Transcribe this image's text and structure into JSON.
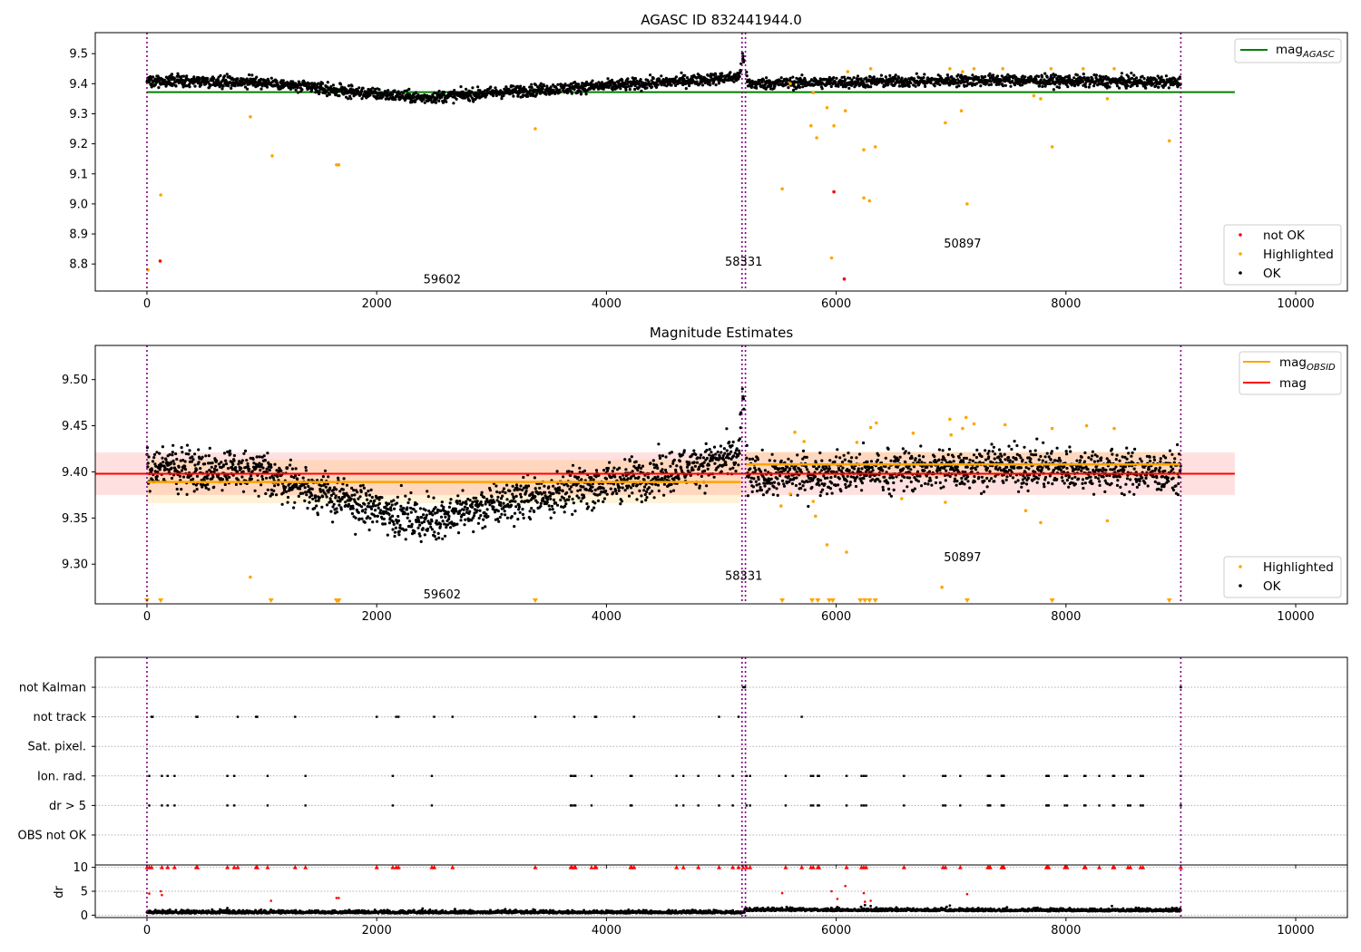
{
  "chart_data": [
    {
      "type": "scatter",
      "title": "AGASC ID 832441944.0",
      "xlim": [
        -450,
        10450
      ],
      "ylim": [
        8.71,
        9.57
      ],
      "xticks": [
        0,
        2000,
        4000,
        6000,
        8000,
        10000
      ],
      "yticks": [
        8.8,
        8.9,
        9.0,
        9.1,
        9.2,
        9.3,
        9.4,
        9.5
      ],
      "ytick_labels": [
        "8.8",
        "8.9",
        "9.0",
        "9.1",
        "9.2",
        "9.3",
        "9.4",
        "9.5"
      ],
      "obs_boundaries": [
        0,
        5180,
        5210,
        9000
      ],
      "obs_labels": [
        {
          "text": "59602",
          "x": 2570,
          "y": 8.75
        },
        {
          "text": "58331",
          "x": 5195,
          "y": 8.81
        },
        {
          "text": "50897",
          "x": 7100,
          "y": 8.87
        }
      ],
      "reference_line": {
        "name_main": "mag",
        "name_sub": "AGASC",
        "value": 9.372,
        "x_range": [
          0,
          9470
        ],
        "color": "#008000"
      },
      "ok_trend": [
        [
          0,
          9.412
        ],
        [
          1000,
          9.405
        ],
        [
          1800,
          9.372
        ],
        [
          2400,
          9.353
        ],
        [
          3200,
          9.375
        ],
        [
          4300,
          9.4
        ],
        [
          5150,
          9.422
        ],
        [
          5190,
          9.49
        ],
        [
          5230,
          9.4
        ],
        [
          6000,
          9.405
        ],
        [
          7400,
          9.412
        ],
        [
          9000,
          9.405
        ]
      ],
      "ok_spread": 0.03,
      "highlighted_points": [
        [
          10,
          8.78
        ],
        [
          120,
          9.03
        ],
        [
          900,
          9.29
        ],
        [
          1090,
          9.16
        ],
        [
          1650,
          9.13
        ],
        [
          1670,
          9.13
        ],
        [
          3380,
          9.25
        ],
        [
          5530,
          9.05
        ],
        [
          5600,
          9.4
        ],
        [
          5780,
          9.26
        ],
        [
          5830,
          9.22
        ],
        [
          5920,
          9.32
        ],
        [
          5960,
          8.82
        ],
        [
          5980,
          9.26
        ],
        [
          6080,
          9.31
        ],
        [
          6240,
          9.18
        ],
        [
          6240,
          9.02
        ],
        [
          6290,
          9.01
        ],
        [
          6340,
          9.19
        ],
        [
          6300,
          9.45
        ],
        [
          6950,
          9.27
        ],
        [
          6990,
          9.45
        ],
        [
          7090,
          9.31
        ],
        [
          7140,
          9.0
        ],
        [
          7100,
          9.44
        ],
        [
          7200,
          9.45
        ],
        [
          7720,
          9.36
        ],
        [
          7780,
          9.35
        ],
        [
          7880,
          9.19
        ],
        [
          7870,
          9.45
        ],
        [
          8360,
          9.35
        ],
        [
          8420,
          9.45
        ],
        [
          8900,
          9.21
        ],
        [
          5800,
          9.37
        ],
        [
          6100,
          9.44
        ],
        [
          7450,
          9.45
        ],
        [
          8150,
          9.45
        ]
      ],
      "not_ok_points": [
        [
          115,
          8.81
        ],
        [
          5980,
          9.04
        ],
        [
          6070,
          8.75
        ]
      ],
      "legend_top": [
        {
          "label": "mag",
          "sub": "AGASC",
          "color": "#008000"
        }
      ],
      "legend_bottom": [
        {
          "label": "not OK",
          "color": "#ff0000"
        },
        {
          "label": "Highlighted",
          "color": "#ffa500"
        },
        {
          "label": "OK",
          "color": "#000000"
        }
      ]
    },
    {
      "type": "scatter",
      "title": "Magnitude Estimates",
      "xlim": [
        -450,
        10450
      ],
      "ylim": [
        9.257,
        9.537
      ],
      "xticks": [
        0,
        2000,
        4000,
        6000,
        8000,
        10000
      ],
      "yticks": [
        9.3,
        9.35,
        9.4,
        9.45,
        9.5
      ],
      "ytick_labels": [
        "9.30",
        "9.35",
        "9.40",
        "9.45",
        "9.50"
      ],
      "obs_boundaries": [
        0,
        5180,
        5210,
        9000
      ],
      "obs_labels": [
        {
          "text": "59602",
          "x": 2570,
          "y": 9.268
        },
        {
          "text": "58331",
          "x": 5195,
          "y": 9.288
        },
        {
          "text": "50897",
          "x": 7100,
          "y": 9.308
        }
      ],
      "mag_line": {
        "name": "mag",
        "value": 9.398,
        "band": [
          9.375,
          9.421
        ],
        "x_range": [
          -450,
          9470
        ],
        "color": "#ff0000"
      },
      "obsid_lines": [
        {
          "x_range": [
            0,
            5170
          ],
          "value": 9.389,
          "band": [
            9.366,
            9.413
          ]
        },
        {
          "x_range": [
            5215,
            9000
          ],
          "value": 9.408,
          "band": [
            9.393,
            9.422
          ]
        }
      ],
      "obsid_legend": {
        "name_main": "mag",
        "name_sub": "OBSID",
        "color": "#ffa500"
      },
      "highlighted_points": [
        [
          900,
          9.286
        ],
        [
          5520,
          9.363
        ],
        [
          5800,
          9.368
        ],
        [
          5820,
          9.352
        ],
        [
          5920,
          9.321
        ],
        [
          6090,
          9.313
        ],
        [
          6300,
          9.448
        ],
        [
          6350,
          9.453
        ],
        [
          6570,
          9.371
        ],
        [
          6920,
          9.275
        ],
        [
          6950,
          9.367
        ],
        [
          6990,
          9.457
        ],
        [
          7100,
          9.447
        ],
        [
          7130,
          9.459
        ],
        [
          7200,
          9.452
        ],
        [
          7650,
          9.358
        ],
        [
          7780,
          9.345
        ],
        [
          7880,
          9.447
        ],
        [
          8180,
          9.45
        ],
        [
          8360,
          9.347
        ],
        [
          8420,
          9.447
        ],
        [
          5640,
          9.443
        ],
        [
          5720,
          9.433
        ],
        [
          6670,
          9.442
        ],
        [
          7000,
          9.44
        ],
        [
          7470,
          9.451
        ],
        [
          5600,
          9.376
        ],
        [
          6180,
          9.432
        ]
      ],
      "clipped_markers_x": [
        0,
        120,
        1080,
        1650,
        1660,
        1670,
        3380,
        5530,
        5790,
        5840,
        5940,
        5970,
        6210,
        6250,
        6290,
        6340,
        7140,
        7880,
        8900
      ],
      "legend_bottom": [
        {
          "label": "Highlighted",
          "color": "#ffa500"
        },
        {
          "label": "OK",
          "color": "#000000"
        }
      ]
    },
    {
      "type": "scatter",
      "title": "",
      "xlim": [
        -450,
        10450
      ],
      "xticks": [
        0,
        2000,
        4000,
        6000,
        8000,
        10000
      ],
      "flag_categories": [
        "not Kalman",
        "not track",
        "Sat. pixel.",
        "Ion. rad.",
        "dr > 5",
        "OBS not OK"
      ],
      "obs_boundaries": [
        0,
        5180,
        5210,
        9000
      ],
      "flags": {
        "not Kalman": [
          5190,
          5205,
          9000
        ],
        "not track": [
          40,
          50,
          430,
          440,
          790,
          950,
          960,
          1290,
          2000,
          2170,
          2190,
          2500,
          2660,
          3380,
          3720,
          3900,
          3910,
          4240,
          4980,
          5150,
          5700
        ],
        "Sat. pixel.": [],
        "Ion. rad.": [
          20,
          130,
          180,
          240,
          700,
          760,
          1050,
          1380,
          2140,
          2480,
          3690,
          3700,
          3720,
          3730,
          3870,
          4210,
          4220,
          4610,
          4670,
          4800,
          4980,
          5100,
          5220,
          5250,
          5560,
          5780,
          5800,
          5840,
          5850,
          6090,
          6220,
          6240,
          6260,
          6590,
          6930,
          6950,
          7080,
          7320,
          7330,
          7340,
          7440,
          7450,
          7460,
          7830,
          7840,
          7850,
          7990,
          8010,
          8160,
          8170,
          8290,
          8410,
          8420,
          8540,
          8560,
          8650,
          8670,
          9000
        ],
        "dr > 5": [
          20,
          130,
          180,
          240,
          700,
          760,
          1050,
          1380,
          2140,
          2480,
          3690,
          3700,
          3720,
          3730,
          3870,
          4210,
          4220,
          4610,
          4670,
          4800,
          4980,
          5100,
          5220,
          5250,
          5560,
          5780,
          5800,
          5840,
          5850,
          6090,
          6220,
          6240,
          6260,
          6590,
          6930,
          6950,
          7080,
          7320,
          7330,
          7340,
          7440,
          7450,
          7460,
          7830,
          7840,
          7850,
          7990,
          8010,
          8160,
          8170,
          8290,
          8410,
          8420,
          8540,
          8560,
          8650,
          8670,
          9000
        ],
        "OBS not OK": []
      }
    },
    {
      "type": "scatter",
      "title": "",
      "ylabel": "dr",
      "xlim": [
        -450,
        10450
      ],
      "ylim": [
        -0.5,
        10.5
      ],
      "xticks": [
        0,
        2000,
        4000,
        6000,
        8000,
        10000
      ],
      "yticks": [
        0,
        5,
        10
      ],
      "ytick_labels": [
        "0",
        "5",
        "10"
      ],
      "obs_boundaries": [
        0,
        5180,
        5210,
        9000
      ],
      "ok_baseline": [
        [
          0,
          0.4
        ],
        [
          5200,
          0.4
        ],
        [
          5210,
          0.9
        ],
        [
          9000,
          0.8
        ]
      ],
      "clipped_x": [
        0,
        20,
        40,
        130,
        180,
        240,
        430,
        440,
        700,
        760,
        790,
        950,
        960,
        1050,
        1290,
        1380,
        2000,
        2140,
        2170,
        2190,
        2480,
        2500,
        2660,
        3380,
        3690,
        3700,
        3720,
        3730,
        3870,
        3900,
        3910,
        4210,
        4220,
        4240,
        4610,
        4670,
        4800,
        4980,
        5100,
        5150,
        5190,
        5220,
        5250,
        5560,
        5700,
        5780,
        5800,
        5840,
        5850,
        6090,
        6220,
        6240,
        6260,
        6590,
        6930,
        6950,
        7080,
        7320,
        7330,
        7340,
        7440,
        7450,
        7460,
        7830,
        7840,
        7850,
        7990,
        8010,
        8160,
        8170,
        8290,
        8410,
        8420,
        8540,
        8560,
        8650,
        8670,
        9000
      ],
      "red_points": [
        [
          20,
          4.5
        ],
        [
          120,
          5.0
        ],
        [
          130,
          4.2
        ],
        [
          1080,
          3.0
        ],
        [
          1650,
          3.6
        ],
        [
          1670,
          3.6
        ],
        [
          5530,
          4.6
        ],
        [
          5960,
          5.0
        ],
        [
          6010,
          3.4
        ],
        [
          6080,
          6.1
        ],
        [
          6240,
          4.6
        ],
        [
          6250,
          2.8
        ],
        [
          6300,
          3.0
        ],
        [
          7140,
          4.4
        ]
      ],
      "black_outliers": [
        [
          5600,
          1.6
        ],
        [
          6250,
          2.1
        ],
        [
          6300,
          1.9
        ],
        [
          6350,
          1.6
        ],
        [
          6990,
          2.0
        ],
        [
          8400,
          1.9
        ],
        [
          700,
          1.5
        ],
        [
          2400,
          1.4
        ]
      ]
    }
  ]
}
